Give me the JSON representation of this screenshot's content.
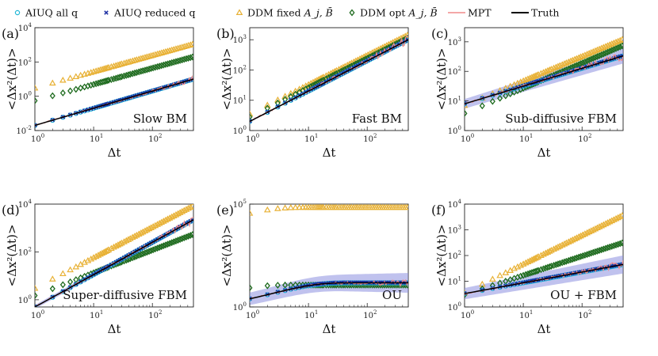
{
  "legend": [
    {
      "key": "aiuq_all",
      "label": "AIUQ all q",
      "color": "#22b7d6",
      "marker": "circle"
    },
    {
      "key": "aiuq_red",
      "label": "AIUQ reduced q",
      "color": "#1d2fa3",
      "marker": "cross"
    },
    {
      "key": "ddm_fixed",
      "label": "DDM fixed",
      "math": "A_j, B̄",
      "color": "#e8b135",
      "marker": "triangle"
    },
    {
      "key": "ddm_opt",
      "label": "DDM opt",
      "math": "A_j, B̄",
      "color": "#1e6b1e",
      "marker": "diamond"
    },
    {
      "key": "mpt",
      "label": "MPT",
      "color": "#f08a8a",
      "marker": "line"
    },
    {
      "key": "truth",
      "label": "Truth",
      "color": "#000000",
      "marker": "line"
    }
  ],
  "colors": {
    "aiuq_all": "#22b7d6",
    "aiuq_red": "#1d2fa3",
    "ddm_fixed": "#e8b135",
    "ddm_opt": "#1e6b1e",
    "mpt": "#f08a8a",
    "truth": "#000000",
    "band": "#8d8fe0"
  },
  "x_label": "Δt",
  "y_label": "<Δx²(Δt)>",
  "chart_data": [
    {
      "type": "scatter",
      "panel": "(a)",
      "title": "Slow BM",
      "xlog": true,
      "ylog": true,
      "xlim": [
        1,
        500
      ],
      "ylim": [
        0.01,
        10000
      ],
      "xticks": [
        {
          "v": 1,
          "base": "10",
          "exp": "0"
        },
        {
          "v": 10,
          "base": "10",
          "exp": "1"
        },
        {
          "v": 100,
          "base": "10",
          "exp": "2"
        }
      ],
      "yticks": [
        {
          "v": 0.01,
          "base": "10",
          "exp": "-2"
        },
        {
          "v": 1,
          "base": "10",
          "exp": "0"
        },
        {
          "v": 100,
          "base": "10",
          "exp": "2"
        },
        {
          "v": 10000,
          "base": "10",
          "exp": "4"
        }
      ],
      "models": {
        "truth": {
          "form": "power",
          "a": 0.02,
          "b": 1.0
        },
        "ddm_fixed": {
          "form": "power",
          "a": 3.0,
          "b": 0.95
        },
        "ddm_opt": {
          "form": "power",
          "a": 0.55,
          "b": 0.95
        }
      },
      "band": 0
    },
    {
      "type": "scatter",
      "panel": "(b)",
      "title": "Fast BM",
      "xlog": true,
      "ylog": true,
      "xlim": [
        1,
        500
      ],
      "ylim": [
        1,
        2500
      ],
      "xticks": [
        {
          "v": 1,
          "base": "10",
          "exp": "0"
        },
        {
          "v": 10,
          "base": "10",
          "exp": "1"
        },
        {
          "v": 100,
          "base": "10",
          "exp": "2"
        }
      ],
      "yticks": [
        {
          "v": 1,
          "base": "10",
          "exp": "0"
        },
        {
          "v": 10,
          "base": "10",
          "exp": "1"
        },
        {
          "v": 100,
          "base": "10",
          "exp": "2"
        },
        {
          "v": 1000,
          "base": "10",
          "exp": "3"
        }
      ],
      "models": {
        "truth": {
          "form": "power",
          "a": 2.0,
          "b": 1.0
        },
        "ddm_fixed": {
          "form": "power",
          "a": 3.5,
          "b": 0.97
        },
        "ddm_opt": {
          "form": "power",
          "a": 2.8,
          "b": 0.97
        }
      },
      "band": 0
    },
    {
      "type": "scatter",
      "panel": "(c)",
      "title": "Sub-diffusive FBM",
      "xlog": true,
      "ylog": true,
      "xlim": [
        1,
        500
      ],
      "ylim": [
        1,
        3000
      ],
      "xticks": [
        {
          "v": 1,
          "base": "10",
          "exp": "0"
        },
        {
          "v": 10,
          "base": "10",
          "exp": "1"
        },
        {
          "v": 100,
          "base": "10",
          "exp": "2"
        }
      ],
      "yticks": [
        {
          "v": 1,
          "base": "10",
          "exp": "0"
        },
        {
          "v": 10,
          "base": "10",
          "exp": "1"
        },
        {
          "v": 100,
          "base": "10",
          "exp": "2"
        },
        {
          "v": 1000,
          "base": "10",
          "exp": "3"
        }
      ],
      "models": {
        "truth": {
          "form": "power",
          "a": 8.0,
          "b": 0.6
        },
        "ddm_fixed": {
          "form": "power",
          "a": 7.0,
          "b": 0.83
        },
        "ddm_opt": {
          "form": "power",
          "a": 3.8,
          "b": 0.85
        }
      },
      "band": 0.16
    },
    {
      "type": "scatter",
      "panel": "(d)",
      "title": "Super-diffusive FBM",
      "xlog": true,
      "ylog": true,
      "xlim": [
        1,
        500
      ],
      "ylim": [
        0.5,
        10000
      ],
      "xticks": [
        {
          "v": 1,
          "base": "10",
          "exp": "0"
        },
        {
          "v": 10,
          "base": "10",
          "exp": "1"
        },
        {
          "v": 100,
          "base": "10",
          "exp": "2"
        }
      ],
      "yticks": [
        {
          "v": 1,
          "base": "10",
          "exp": "0"
        },
        {
          "v": 100,
          "base": "10",
          "exp": "2"
        },
        {
          "v": 10000,
          "base": "10",
          "exp": "4"
        }
      ],
      "models": {
        "truth": {
          "form": "power",
          "a": 0.5,
          "b": 1.35
        },
        "ddm_fixed": {
          "form": "power",
          "a": 3.0,
          "b": 1.28
        },
        "ddm_opt": {
          "form": "power",
          "a": 1.5,
          "b": 0.95
        }
      },
      "band": 0.08
    },
    {
      "type": "scatter",
      "panel": "(e)",
      "title": "OU",
      "xlog": true,
      "ylog": true,
      "xlim": [
        1,
        500
      ],
      "ylim": [
        1,
        100000
      ],
      "xticks": [
        {
          "v": 1,
          "base": "10",
          "exp": "0"
        },
        {
          "v": 10,
          "base": "10",
          "exp": "1"
        },
        {
          "v": 100,
          "base": "10",
          "exp": "2"
        }
      ],
      "yticks": [
        {
          "v": 1,
          "base": "10",
          "exp": "0"
        },
        {
          "v": 100000,
          "base": "10",
          "exp": "5"
        }
      ],
      "models": {
        "truth": {
          "form": "ou",
          "a": 14,
          "tau": 8
        },
        "ddm_fixed": {
          "form": "ou",
          "a": 65000,
          "tau": 1.5
        },
        "ddm_opt": {
          "form": "ou",
          "a": 11,
          "tau": 0.8
        }
      },
      "band": 0.3
    },
    {
      "type": "scatter",
      "panel": "(f)",
      "title": "OU + FBM",
      "xlog": true,
      "ylog": true,
      "xlim": [
        1,
        500
      ],
      "ylim": [
        1,
        10000
      ],
      "xticks": [
        {
          "v": 1,
          "base": "10",
          "exp": "0"
        },
        {
          "v": 10,
          "base": "10",
          "exp": "1"
        },
        {
          "v": 100,
          "base": "10",
          "exp": "2"
        }
      ],
      "yticks": [
        {
          "v": 1,
          "base": "10",
          "exp": "0"
        },
        {
          "v": 10,
          "base": "10",
          "exp": "1"
        },
        {
          "v": 100,
          "base": "10",
          "exp": "2"
        },
        {
          "v": 1000,
          "base": "10",
          "exp": "3"
        },
        {
          "v": 10000,
          "base": "10",
          "exp": "4"
        }
      ],
      "models": {
        "truth": {
          "form": "power",
          "a": 3.3,
          "b": 0.42
        },
        "ddm_fixed": {
          "form": "power",
          "a": 3.5,
          "b": 1.12
        },
        "ddm_opt": {
          "form": "power",
          "a": 3.0,
          "b": 0.75
        }
      },
      "band": 0.22
    }
  ]
}
